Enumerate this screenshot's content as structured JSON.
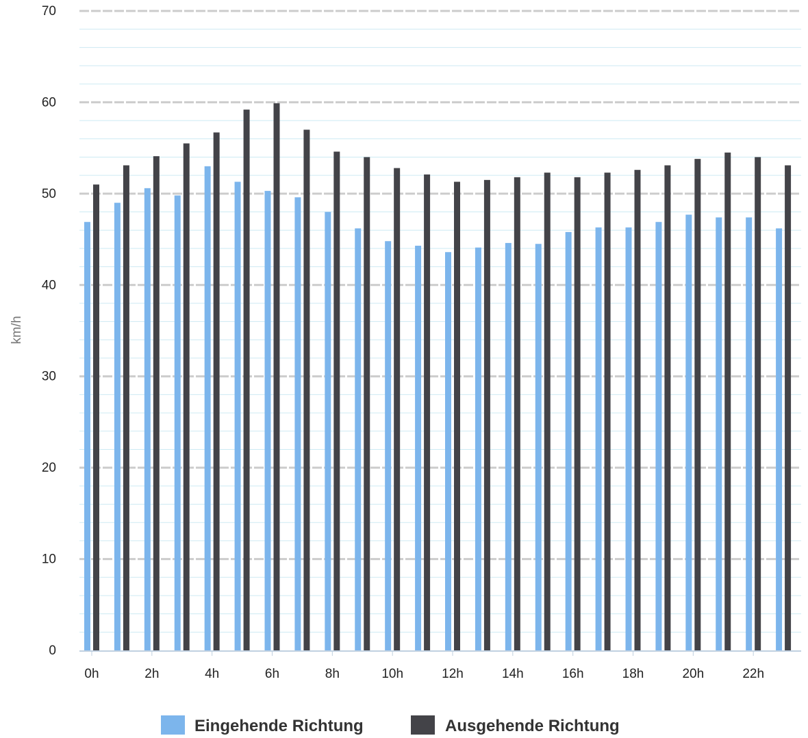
{
  "chart_data": {
    "type": "bar",
    "title": "",
    "xlabel": "",
    "ylabel": "km/h",
    "ylim": [
      0,
      70
    ],
    "y_ticks": [
      "0",
      "10",
      "20",
      "30",
      "40",
      "50",
      "60",
      "70"
    ],
    "categories": [
      "0h",
      "1h",
      "2h",
      "3h",
      "4h",
      "5h",
      "6h",
      "7h",
      "8h",
      "9h",
      "10h",
      "11h",
      "12h",
      "13h",
      "14h",
      "15h",
      "16h",
      "17h",
      "18h",
      "19h",
      "20h",
      "21h",
      "22h",
      "23h"
    ],
    "x_tick_labels": [
      "0h",
      "2h",
      "4h",
      "6h",
      "8h",
      "10h",
      "12h",
      "14h",
      "16h",
      "18h",
      "20h",
      "22h"
    ],
    "series": [
      {
        "name": "Eingehende Richtung",
        "color": "#7cb5ec",
        "values": [
          46.9,
          49.0,
          50.6,
          49.8,
          53.0,
          51.3,
          50.3,
          49.6,
          48.0,
          46.2,
          44.8,
          44.3,
          43.6,
          44.1,
          44.6,
          44.5,
          45.8,
          46.3,
          46.3,
          46.9,
          47.7,
          47.4,
          47.4,
          46.2
        ]
      },
      {
        "name": "Ausgehende Richtung",
        "color": "#434348",
        "values": [
          51.0,
          53.1,
          54.1,
          55.5,
          56.7,
          59.2,
          59.9,
          57.0,
          54.6,
          54.0,
          52.8,
          52.1,
          51.3,
          51.5,
          51.8,
          52.3,
          51.8,
          52.3,
          52.6,
          53.1,
          53.8,
          54.5,
          54.0,
          53.1
        ]
      }
    ],
    "grid": true,
    "legend": "bottom-center"
  }
}
